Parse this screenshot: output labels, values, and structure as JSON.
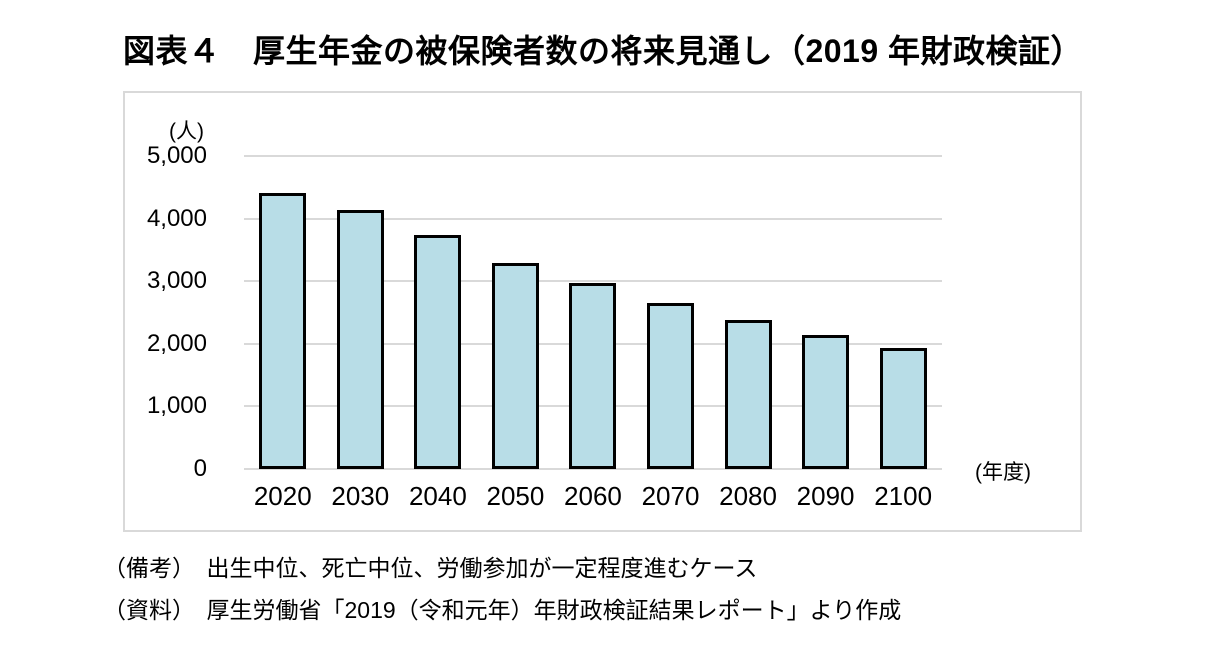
{
  "chart_data": {
    "type": "bar",
    "title": "図表４　厚生年金の被保険者数の将来見通し（2019 年財政検証）",
    "categories": [
      "2020",
      "2030",
      "2040",
      "2050",
      "2060",
      "2070",
      "2080",
      "2090",
      "2100"
    ],
    "values": [
      4420,
      4150,
      3740,
      3290,
      2970,
      2660,
      2390,
      2150,
      1930
    ],
    "y_axis": {
      "unit": "(人)",
      "ticks": [
        "5,000",
        "4,000",
        "3,000",
        "2,000",
        "1,000",
        "0"
      ],
      "max": 5000,
      "min": 0,
      "tick_step": 1000
    },
    "x_axis": {
      "unit": "(年度)"
    },
    "grid": true,
    "legend": "none",
    "colors": {
      "bar_fill": "#b8dde7",
      "bar_border": "#000000",
      "gridline": "#d9d9d9",
      "plot_border": "#d9d9d9",
      "text": "#000000"
    }
  },
  "notes": [
    "（備考）　出生中位、死亡中位、労働参加が一定程度進むケース",
    "（資料）　厚生労働省「2019（令和元年）年財政検証結果レポート」より作成"
  ]
}
